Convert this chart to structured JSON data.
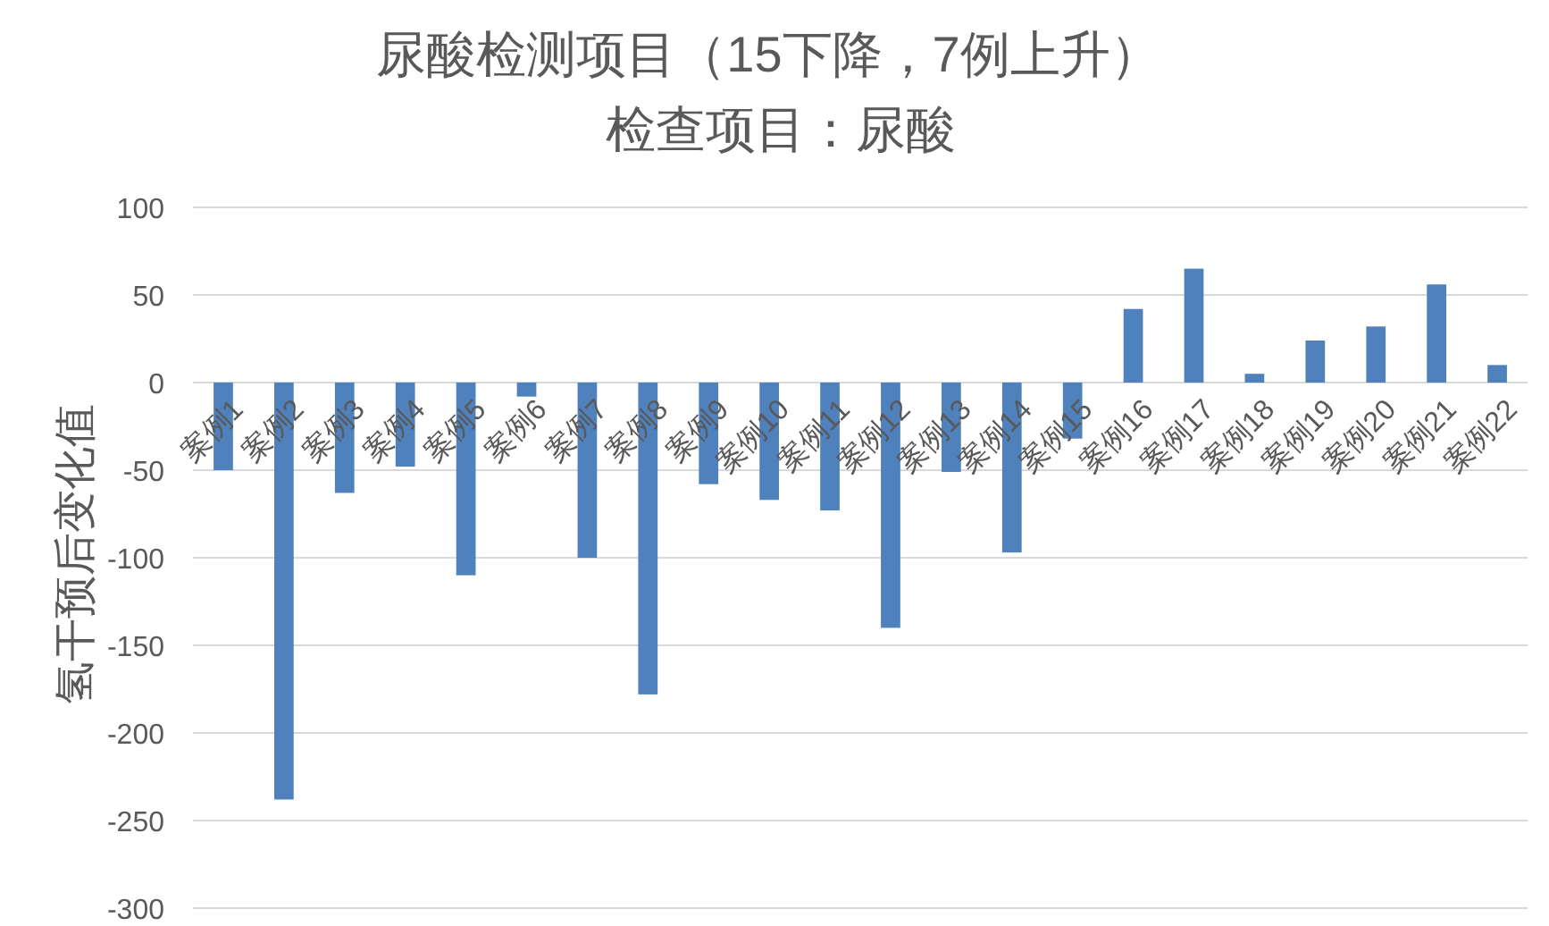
{
  "chart_data": {
    "type": "bar",
    "title": "尿酸检测项目（15下降，7例上升）",
    "subtitle": "检查项目：尿酸",
    "ylabel": "氢干预后变化值",
    "categories": [
      "案例1",
      "案例2",
      "案例3",
      "案例4",
      "案例5",
      "案例6",
      "案例7",
      "案例8",
      "案例9",
      "案例10",
      "案例11",
      "案例12",
      "案例13",
      "案例14",
      "案例15",
      "案例16",
      "案例17",
      "案例18",
      "案例19",
      "案例20",
      "案例21",
      "案例22"
    ],
    "values": [
      -50,
      -238,
      -63,
      -48,
      -110,
      -8,
      -100,
      -178,
      -58,
      -67,
      -73,
      -140,
      -51,
      -97,
      -32,
      42,
      65,
      5,
      24,
      32,
      56,
      10
    ],
    "color": "#4f81bd",
    "ylim": [
      -300,
      100
    ],
    "yticks": [
      -300,
      -250,
      -200,
      -150,
      -100,
      -50,
      0,
      50,
      100
    ],
    "grid": "y"
  }
}
